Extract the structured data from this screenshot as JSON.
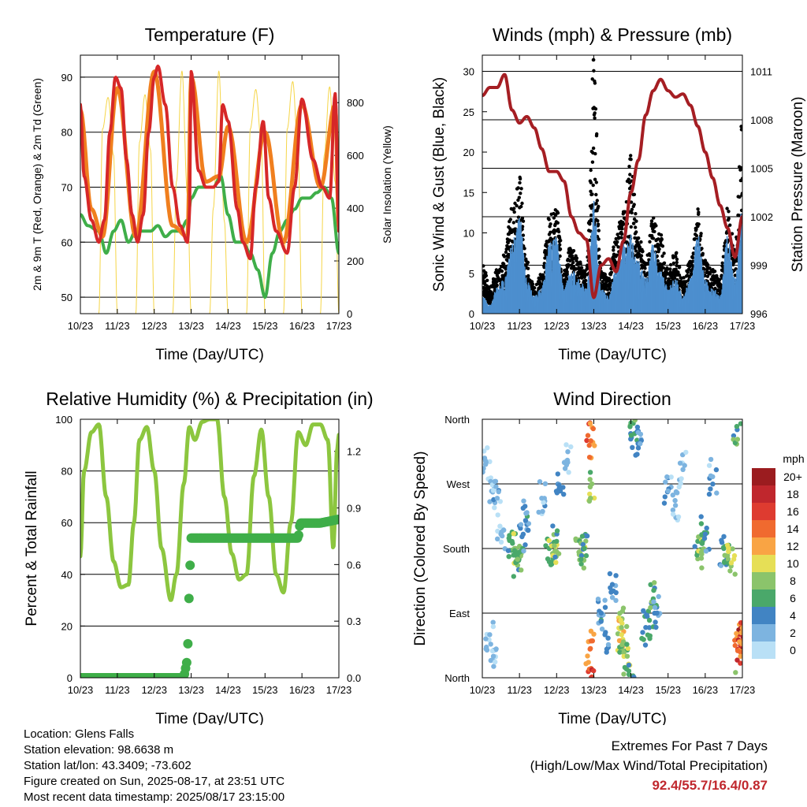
{
  "chart_data": [
    {
      "type": "line",
      "title": "Temperature (F)",
      "xlabel": "Time (Day/UTC)",
      "ylabel": "2m & 9m T (Red, Orange) & 2m Td (Green)",
      "ylabel_right": "Solar Insolation (Yellow)",
      "x_ticks": [
        "10/23",
        "11/23",
        "12/23",
        "13/23",
        "14/23",
        "15/23",
        "16/23",
        "17/23"
      ],
      "ylim": [
        47,
        94
      ],
      "y_ticks": [
        50,
        60,
        70,
        80,
        90
      ],
      "ylim_right": [
        0,
        980
      ],
      "y_ticks_right": [
        0,
        200,
        400,
        600,
        800
      ],
      "grid": true,
      "series": [
        {
          "name": "2m T",
          "color": "#d62728",
          "x": [
            0,
            0.1,
            0.3,
            0.5,
            0.65,
            0.8,
            0.95,
            1.1,
            1.25,
            1.4,
            1.55,
            1.7,
            1.85,
            2.0,
            2.1,
            2.3,
            2.5,
            2.7,
            2.9,
            2.95,
            3.0,
            3.2,
            3.4,
            3.6,
            3.75,
            3.85,
            4.0,
            4.25,
            4.4,
            4.6,
            4.75,
            4.95,
            5.1,
            5.3,
            5.6,
            5.8,
            6.0,
            6.3,
            6.55,
            6.75,
            6.9,
            7.0
          ],
          "values": [
            85,
            72,
            64,
            60,
            64,
            80,
            90,
            88,
            75,
            65,
            60,
            65,
            80,
            90,
            92,
            85,
            70,
            63,
            60,
            64,
            91,
            73,
            70,
            70,
            71,
            85,
            82,
            66,
            60,
            57,
            70,
            82,
            68,
            62,
            58,
            70,
            86,
            75,
            70,
            68,
            87,
            62
          ]
        },
        {
          "name": "9m T",
          "color": "#f07f1e",
          "x": [
            0,
            0.3,
            0.6,
            1.0,
            1.5,
            2.0,
            2.5,
            2.9,
            3.0,
            3.4,
            3.75,
            4.0,
            4.5,
            5.0,
            5.5,
            6.0,
            6.5,
            6.9,
            7.0
          ],
          "values": [
            84,
            66,
            61,
            88,
            61,
            91,
            63,
            61,
            90,
            71,
            72,
            81,
            60,
            80,
            60,
            85,
            70,
            85,
            63
          ]
        },
        {
          "name": "2m Td",
          "color": "#3fae49",
          "x": [
            0,
            0.2,
            0.5,
            0.7,
            0.9,
            1.1,
            1.3,
            1.5,
            1.7,
            1.9,
            2.1,
            2.3,
            2.5,
            2.7,
            2.9,
            3.0,
            3.2,
            3.4,
            3.6,
            3.8,
            4.0,
            4.2,
            4.4,
            4.6,
            4.8,
            5.0,
            5.2,
            5.4,
            5.6,
            5.8,
            6.0,
            6.2,
            6.4,
            6.6,
            6.8,
            7.0
          ],
          "values": [
            65,
            63,
            62,
            58,
            62,
            64,
            60,
            62,
            62,
            62,
            63,
            61,
            62,
            62,
            64,
            68,
            70,
            70,
            70,
            72,
            65,
            60,
            60,
            58,
            55,
            50,
            58,
            62,
            64,
            66,
            68,
            68,
            69,
            70,
            68,
            58
          ]
        },
        {
          "name": "Solar Insolation",
          "color": "#f5d547",
          "axis": "right",
          "x": [
            0,
            0.25,
            0.5,
            0.6,
            0.75,
            0.9,
            1.0,
            1.25,
            1.5,
            1.6,
            1.75,
            1.9,
            2.0,
            2.25,
            2.5,
            2.6,
            2.75,
            2.9,
            3.0,
            3.25,
            3.5,
            3.6,
            3.75,
            3.9,
            4.0,
            4.25,
            4.5,
            4.6,
            4.75,
            4.9,
            5.0,
            5.25,
            5.5,
            5.6,
            5.75,
            5.9,
            6.0,
            6.25,
            6.5,
            6.6,
            6.75,
            6.9,
            7.0
          ],
          "values": [
            0,
            0,
            0,
            700,
            820,
            600,
            0,
            0,
            0,
            650,
            830,
            620,
            0,
            0,
            0,
            500,
            920,
            450,
            0,
            0,
            0,
            400,
            920,
            350,
            0,
            0,
            0,
            700,
            850,
            650,
            0,
            0,
            0,
            700,
            880,
            600,
            0,
            0,
            0,
            600,
            860,
            500,
            0
          ]
        }
      ]
    },
    {
      "type": "line",
      "title": "Winds (mph) & Pressure (mb)",
      "xlabel": "Time (Day/UTC)",
      "ylabel": "Sonic Wind & Gust (Blue, Black)",
      "ylabel_right": "Station Pressure (Maroon)",
      "x_ticks": [
        "10/23",
        "11/23",
        "12/23",
        "13/23",
        "14/23",
        "15/23",
        "16/23",
        "17/23"
      ],
      "ylim": [
        0,
        32
      ],
      "y_ticks": [
        0,
        5,
        10,
        15,
        20,
        25,
        30
      ],
      "ylim_right": [
        996,
        1012
      ],
      "y_ticks_right": [
        996,
        999,
        1002,
        1005,
        1008,
        1011
      ],
      "grid": true,
      "series": [
        {
          "name": "Sonic Wind",
          "color": "#4d8fcf",
          "x": [
            0,
            0.2,
            0.4,
            0.6,
            0.8,
            1.0,
            1.2,
            1.4,
            1.6,
            1.8,
            2.0,
            2.2,
            2.4,
            2.6,
            2.8,
            3.0,
            3.2,
            3.4,
            3.6,
            3.8,
            4.0,
            4.2,
            4.4,
            4.6,
            4.8,
            5.0,
            5.2,
            5.4,
            5.6,
            5.8,
            6.0,
            6.2,
            6.4,
            6.6,
            6.8,
            7.0
          ],
          "values": [
            2,
            1,
            3,
            4,
            8,
            11,
            4,
            2,
            3,
            8,
            9,
            3,
            5,
            4,
            3,
            13,
            3,
            2,
            5,
            8,
            9,
            6,
            4,
            8,
            5,
            3,
            4,
            2,
            4,
            9,
            4,
            3,
            2,
            9,
            4,
            12
          ]
        },
        {
          "name": "Gust",
          "color": "#000000",
          "x": [
            0,
            0.2,
            0.4,
            0.6,
            0.8,
            1.0,
            1.2,
            1.4,
            1.6,
            1.8,
            2.0,
            2.2,
            2.4,
            2.6,
            2.8,
            3.0,
            3.2,
            3.4,
            3.6,
            3.8,
            4.0,
            4.2,
            4.4,
            4.6,
            4.8,
            5.0,
            5.2,
            5.4,
            5.6,
            5.8,
            6.0,
            6.2,
            6.4,
            6.6,
            6.8,
            7.0
          ],
          "values": [
            6,
            3,
            5,
            7,
            12,
            16,
            6,
            3,
            5,
            11,
            12,
            5,
            8,
            6,
            5,
            29,
            5,
            4,
            9,
            12,
            18,
            9,
            6,
            11,
            9,
            5,
            7,
            4,
            6,
            12,
            6,
            5,
            4,
            12,
            8,
            22
          ]
        },
        {
          "name": "Station Pressure",
          "color": "#a51e23",
          "axis": "right",
          "x": [
            0,
            0.2,
            0.4,
            0.6,
            0.8,
            1.0,
            1.2,
            1.4,
            1.6,
            1.8,
            2.0,
            2.2,
            2.4,
            2.6,
            2.8,
            3.0,
            3.2,
            3.4,
            3.6,
            3.8,
            4.0,
            4.2,
            4.4,
            4.6,
            4.8,
            5.0,
            5.2,
            5.4,
            5.6,
            5.8,
            6.0,
            6.2,
            6.4,
            6.6,
            6.8,
            7.0
          ],
          "values": [
            1009.5,
            1010,
            1010,
            1010.8,
            1008.6,
            1007.8,
            1008.2,
            1007.5,
            1006.2,
            1004.8,
            1004.8,
            1004.2,
            1002,
            1001,
            1000.6,
            997,
            999,
            999.4,
            998.6,
            1000.5,
            1003.5,
            1005.5,
            1008.3,
            1009.8,
            1010.5,
            1009.8,
            1009.4,
            1009.6,
            1008.9,
            1007.6,
            1006,
            1004.4,
            1002.7,
            1001.3,
            999.5,
            1002
          ]
        }
      ]
    },
    {
      "type": "line",
      "title": "Relative Humidity (%) & Precipitation (in)",
      "xlabel": "Time (Day/UTC)",
      "ylabel": "Percent & Total Rainfall",
      "x_ticks": [
        "10/23",
        "11/23",
        "12/23",
        "13/23",
        "14/23",
        "15/23",
        "16/23",
        "17/23"
      ],
      "ylim": [
        0,
        100
      ],
      "y_ticks": [
        0,
        20,
        40,
        60,
        80,
        100
      ],
      "ylim_right": [
        0,
        1.37
      ],
      "y_ticks_right": [
        "0.0",
        "0.3",
        "0.6",
        "0.9",
        "1.2"
      ],
      "grid": true,
      "series": [
        {
          "name": "Relative Humidity",
          "color": "#8cc63f",
          "x": [
            0,
            0.1,
            0.3,
            0.5,
            0.7,
            0.9,
            1.1,
            1.3,
            1.45,
            1.6,
            1.8,
            2.0,
            2.2,
            2.45,
            2.6,
            2.8,
            2.95,
            3.1,
            3.3,
            3.5,
            3.7,
            3.9,
            4.1,
            4.3,
            4.5,
            4.7,
            4.9,
            5.1,
            5.3,
            5.5,
            5.7,
            5.9,
            6.1,
            6.3,
            6.5,
            6.7,
            6.85,
            6.95,
            7.0
          ],
          "values": [
            47,
            80,
            95,
            98,
            70,
            45,
            35,
            36,
            60,
            92,
            97,
            80,
            50,
            30,
            40,
            75,
            97,
            92,
            99,
            100,
            100,
            70,
            48,
            38,
            40,
            78,
            96,
            70,
            40,
            33,
            60,
            95,
            90,
            98,
            98,
            92,
            50,
            88,
            94
          ]
        },
        {
          "name": "Total Rainfall",
          "color": "#3fae49",
          "axis": "right",
          "x": [
            0,
            1,
            2,
            2.8,
            2.9,
            2.95,
            3.0,
            3.5,
            4,
            5,
            5.9,
            5.95,
            6.5,
            7.0
          ],
          "values": [
            0,
            0,
            0,
            0,
            0.1,
            0.5,
            0.74,
            0.74,
            0.74,
            0.74,
            0.74,
            0.82,
            0.82,
            0.84
          ]
        }
      ]
    },
    {
      "type": "scatter",
      "title": "Wind Direction",
      "xlabel": "Time (Day/UTC)",
      "ylabel": "Direction (Colored By Speed)",
      "x_ticks": [
        "10/23",
        "11/23",
        "12/23",
        "13/23",
        "14/23",
        "15/23",
        "16/23",
        "17/23"
      ],
      "y_ticks": [
        "North",
        "East",
        "South",
        "West",
        "North"
      ],
      "grid": true,
      "legend_title": "mph",
      "legend_labels": [
        "20+",
        "18",
        "16",
        "14",
        "12",
        "10",
        "8",
        "6",
        "4",
        "2",
        "0"
      ],
      "legend_colors": [
        "#9b1c1f",
        "#c0272d",
        "#de3b30",
        "#f06a2f",
        "#f9a444",
        "#e6df56",
        "#8bc46b",
        "#4aa86a",
        "#4184c3",
        "#7db4e0",
        "#b9e0f6"
      ],
      "points": [
        {
          "x": 0.1,
          "dir": 300,
          "speed": 1
        },
        {
          "x": 0.25,
          "dir": 260,
          "speed": 1
        },
        {
          "x": 0.4,
          "dir": 250,
          "speed": 2
        },
        {
          "x": 0.5,
          "dir": 200,
          "speed": 1
        },
        {
          "x": 0.2,
          "dir": 60,
          "speed": 1
        },
        {
          "x": 0.3,
          "dir": 30,
          "speed": 1
        },
        {
          "x": 0.8,
          "dir": 190,
          "speed": 5
        },
        {
          "x": 0.9,
          "dir": 180,
          "speed": 8
        },
        {
          "x": 1.0,
          "dir": 175,
          "speed": 6
        },
        {
          "x": 1.1,
          "dir": 200,
          "speed": 4
        },
        {
          "x": 0.95,
          "dir": 165,
          "speed": 7
        },
        {
          "x": 1.2,
          "dir": 230,
          "speed": 2
        },
        {
          "x": 1.6,
          "dir": 250,
          "speed": 2
        },
        {
          "x": 1.8,
          "dir": 180,
          "speed": 5
        },
        {
          "x": 1.9,
          "dir": 170,
          "speed": 9
        },
        {
          "x": 2.0,
          "dir": 190,
          "speed": 6
        },
        {
          "x": 2.1,
          "dir": 260,
          "speed": 3
        },
        {
          "x": 2.3,
          "dir": 300,
          "speed": 2
        },
        {
          "x": 2.6,
          "dir": 175,
          "speed": 7
        },
        {
          "x": 2.7,
          "dir": 170,
          "speed": 9
        },
        {
          "x": 2.75,
          "dir": 180,
          "speed": 5
        },
        {
          "x": 2.9,
          "dir": 355,
          "speed": 16
        },
        {
          "x": 2.92,
          "dir": 330,
          "speed": 13
        },
        {
          "x": 2.95,
          "dir": 270,
          "speed": 8
        },
        {
          "x": 2.9,
          "dir": 40,
          "speed": 13
        },
        {
          "x": 3.2,
          "dir": 90,
          "speed": 3
        },
        {
          "x": 3.3,
          "dir": 60,
          "speed": 4
        },
        {
          "x": 3.5,
          "dir": 130,
          "speed": 3
        },
        {
          "x": 3.7,
          "dir": 80,
          "speed": 9
        },
        {
          "x": 3.75,
          "dir": 60,
          "speed": 10
        },
        {
          "x": 3.8,
          "dir": 50,
          "speed": 7
        },
        {
          "x": 3.9,
          "dir": 30,
          "speed": 8
        },
        {
          "x": 4.0,
          "dir": 355,
          "speed": 6
        },
        {
          "x": 4.1,
          "dir": 340,
          "speed": 5
        },
        {
          "x": 4.2,
          "dir": 320,
          "speed": 3
        },
        {
          "x": 4.4,
          "dir": 70,
          "speed": 4
        },
        {
          "x": 4.5,
          "dir": 80,
          "speed": 5
        },
        {
          "x": 4.6,
          "dir": 110,
          "speed": 6
        },
        {
          "x": 4.7,
          "dir": 90,
          "speed": 3
        },
        {
          "x": 5.0,
          "dir": 260,
          "speed": 2
        },
        {
          "x": 5.2,
          "dir": 240,
          "speed": 1
        },
        {
          "x": 5.4,
          "dir": 290,
          "speed": 1
        },
        {
          "x": 5.8,
          "dir": 190,
          "speed": 6
        },
        {
          "x": 5.9,
          "dir": 175,
          "speed": 8
        },
        {
          "x": 6.0,
          "dir": 200,
          "speed": 4
        },
        {
          "x": 6.2,
          "dir": 280,
          "speed": 2
        },
        {
          "x": 6.5,
          "dir": 180,
          "speed": 4
        },
        {
          "x": 6.6,
          "dir": 170,
          "speed": 7
        },
        {
          "x": 6.7,
          "dir": 160,
          "speed": 9
        },
        {
          "x": 6.85,
          "dir": 350,
          "speed": 6
        },
        {
          "x": 6.9,
          "dir": 60,
          "speed": 14
        },
        {
          "x": 6.95,
          "dir": 45,
          "speed": 18
        },
        {
          "x": 6.92,
          "dir": 50,
          "speed": 12
        }
      ]
    }
  ],
  "footer": {
    "location": "Location: Glens Falls",
    "elevation": "Station elevation: 98.6638 m",
    "latlon": "Station lat/lon: 43.3409; -73.602",
    "created": "Figure created on Sun, 2025-08-17, at 23:51 UTC",
    "recent": "Most recent data timestamp: 2025/08/17 23:15:00"
  },
  "extremes": {
    "title": "Extremes For Past 7 Days",
    "subtitle": "(High/Low/Max Wind/Total Precipitation)",
    "values": "92.4/55.7/16.4/0.87"
  }
}
